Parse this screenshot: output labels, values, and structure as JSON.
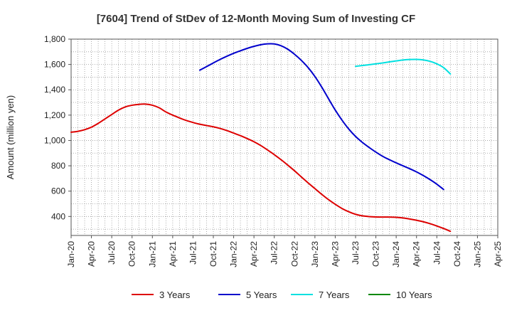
{
  "chart_data": {
    "type": "line",
    "title": "[7604]  Trend of StDev of 12-Month Moving Sum of Investing CF",
    "ylabel": "Amount (million yen)",
    "xlabel": "",
    "ylim": [
      250,
      1800
    ],
    "yticks": [
      400,
      600,
      800,
      1000,
      1200,
      1400,
      1600,
      1800
    ],
    "ytick_labels": [
      "400",
      "600",
      "800",
      "1,000",
      "1,200",
      "1,400",
      "1,600",
      "1,800"
    ],
    "x_tick_labels": [
      "Jan-20",
      "Apr-20",
      "Jul-20",
      "Oct-20",
      "Jan-21",
      "Apr-21",
      "Jul-21",
      "Oct-21",
      "Jan-22",
      "Apr-22",
      "Jul-22",
      "Oct-22",
      "Jan-23",
      "Apr-23",
      "Jul-23",
      "Oct-23",
      "Jan-24",
      "Apr-24",
      "Jul-24",
      "Oct-24",
      "Jan-25",
      "Apr-25"
    ],
    "grid": true,
    "legend_position": "bottom",
    "series": [
      {
        "name": "3 Years",
        "color": "#dd0000",
        "points": [
          [
            "2020-01",
            1065
          ],
          [
            "2020-02",
            1072
          ],
          [
            "2020-03",
            1085
          ],
          [
            "2020-04",
            1105
          ],
          [
            "2020-05",
            1135
          ],
          [
            "2020-06",
            1170
          ],
          [
            "2020-07",
            1205
          ],
          [
            "2020-08",
            1240
          ],
          [
            "2020-09",
            1265
          ],
          [
            "2020-10",
            1278
          ],
          [
            "2020-11",
            1285
          ],
          [
            "2020-12",
            1287
          ],
          [
            "2021-01",
            1278
          ],
          [
            "2021-02",
            1258
          ],
          [
            "2021-03",
            1225
          ],
          [
            "2021-04",
            1200
          ],
          [
            "2021-05",
            1178
          ],
          [
            "2021-06",
            1158
          ],
          [
            "2021-07",
            1142
          ],
          [
            "2021-08",
            1128
          ],
          [
            "2021-09",
            1118
          ],
          [
            "2021-10",
            1108
          ],
          [
            "2021-11",
            1095
          ],
          [
            "2021-12",
            1078
          ],
          [
            "2022-01",
            1058
          ],
          [
            "2022-02",
            1038
          ],
          [
            "2022-03",
            1015
          ],
          [
            "2022-04",
            990
          ],
          [
            "2022-05",
            960
          ],
          [
            "2022-06",
            925
          ],
          [
            "2022-07",
            888
          ],
          [
            "2022-08",
            848
          ],
          [
            "2022-09",
            805
          ],
          [
            "2022-10",
            760
          ],
          [
            "2022-11",
            712
          ],
          [
            "2022-12",
            665
          ],
          [
            "2023-01",
            620
          ],
          [
            "2023-02",
            575
          ],
          [
            "2023-03",
            533
          ],
          [
            "2023-04",
            496
          ],
          [
            "2023-05",
            463
          ],
          [
            "2023-06",
            437
          ],
          [
            "2023-07",
            417
          ],
          [
            "2023-08",
            405
          ],
          [
            "2023-09",
            399
          ],
          [
            "2023-10",
            396
          ],
          [
            "2023-11",
            395
          ],
          [
            "2023-12",
            395
          ],
          [
            "2024-01",
            393
          ],
          [
            "2024-02",
            388
          ],
          [
            "2024-03",
            380
          ],
          [
            "2024-04",
            370
          ],
          [
            "2024-05",
            358
          ],
          [
            "2024-06",
            343
          ],
          [
            "2024-07",
            325
          ],
          [
            "2024-08",
            305
          ],
          [
            "2024-09",
            283
          ]
        ]
      },
      {
        "name": "5 Years",
        "color": "#0000cc",
        "points": [
          [
            "2021-08",
            1555
          ],
          [
            "2021-09",
            1583
          ],
          [
            "2021-10",
            1612
          ],
          [
            "2021-11",
            1640
          ],
          [
            "2021-12",
            1665
          ],
          [
            "2022-01",
            1688
          ],
          [
            "2022-02",
            1708
          ],
          [
            "2022-03",
            1727
          ],
          [
            "2022-04",
            1743
          ],
          [
            "2022-05",
            1756
          ],
          [
            "2022-06",
            1763
          ],
          [
            "2022-07",
            1762
          ],
          [
            "2022-08",
            1748
          ],
          [
            "2022-09",
            1720
          ],
          [
            "2022-10",
            1680
          ],
          [
            "2022-11",
            1632
          ],
          [
            "2022-12",
            1575
          ],
          [
            "2023-01",
            1505
          ],
          [
            "2023-02",
            1422
          ],
          [
            "2023-03",
            1330
          ],
          [
            "2023-04",
            1240
          ],
          [
            "2023-05",
            1160
          ],
          [
            "2023-06",
            1090
          ],
          [
            "2023-07",
            1032
          ],
          [
            "2023-08",
            985
          ],
          [
            "2023-09",
            945
          ],
          [
            "2023-10",
            908
          ],
          [
            "2023-11",
            875
          ],
          [
            "2023-12",
            848
          ],
          [
            "2024-01",
            823
          ],
          [
            "2024-02",
            800
          ],
          [
            "2024-03",
            777
          ],
          [
            "2024-04",
            752
          ],
          [
            "2024-05",
            723
          ],
          [
            "2024-06",
            691
          ],
          [
            "2024-07",
            655
          ],
          [
            "2024-08",
            613
          ]
        ]
      },
      {
        "name": "7 Years",
        "color": "#00e0e0",
        "points": [
          [
            "2023-07",
            1585
          ],
          [
            "2023-08",
            1592
          ],
          [
            "2023-09",
            1598
          ],
          [
            "2023-10",
            1605
          ],
          [
            "2023-11",
            1612
          ],
          [
            "2023-12",
            1620
          ],
          [
            "2024-01",
            1628
          ],
          [
            "2024-02",
            1635
          ],
          [
            "2024-03",
            1639
          ],
          [
            "2024-04",
            1640
          ],
          [
            "2024-05",
            1636
          ],
          [
            "2024-06",
            1625
          ],
          [
            "2024-07",
            1605
          ],
          [
            "2024-08",
            1575
          ],
          [
            "2024-09",
            1525
          ]
        ]
      },
      {
        "name": "10 Years",
        "color": "#008800",
        "points": []
      }
    ]
  }
}
